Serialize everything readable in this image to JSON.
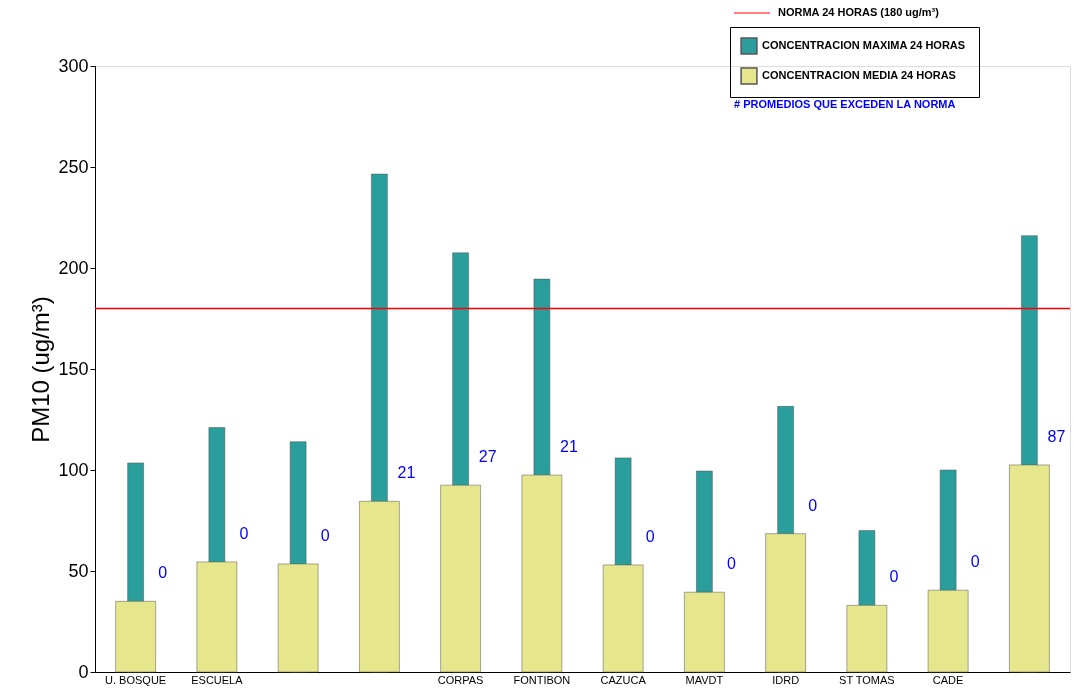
{
  "chart_data": {
    "type": "bar",
    "ylabel": "PM10 (ug/m³)",
    "categories": [
      "U. BOSQUE",
      "ESCUELA",
      null,
      null,
      "CORPAS",
      "FONTIBON",
      "CAZUCA",
      "MAVDT",
      "IDRD",
      "ST TOMAS",
      "CADE",
      null
    ],
    "series": [
      {
        "name": "CONCENTRACION  MAXIMA 24 HORAS",
        "color": "#2a9d9d",
        "values": [
          103.5,
          121,
          114,
          246.5,
          207.5,
          194.5,
          106,
          99.5,
          131.5,
          70,
          100,
          216
        ]
      },
      {
        "name": "CONCENTRACION MEDIA 24 HORAS",
        "color": "#e6e68c",
        "values": [
          35,
          54.5,
          53.5,
          84.5,
          92.5,
          97.5,
          53,
          39.5,
          68.5,
          33,
          40.5,
          102.5
        ]
      }
    ],
    "ylim": [
      0,
      300
    ],
    "yticks": [
      0,
      50,
      100,
      150,
      200,
      250,
      300
    ],
    "grid": false,
    "legend": "top right",
    "ref_lines": [
      {
        "axis": "y",
        "value": 180,
        "label": "NORMA 24 HORAS (180 ug/m³)",
        "color": "#ff0000"
      }
    ],
    "annotations": [
      "# PROMEDIOS QUE EXCEDEN LA NORMA",
      "0",
      "0",
      "0",
      "21",
      "27",
      "21",
      "0",
      "0",
      "0",
      "0",
      "0",
      "87"
    ]
  }
}
